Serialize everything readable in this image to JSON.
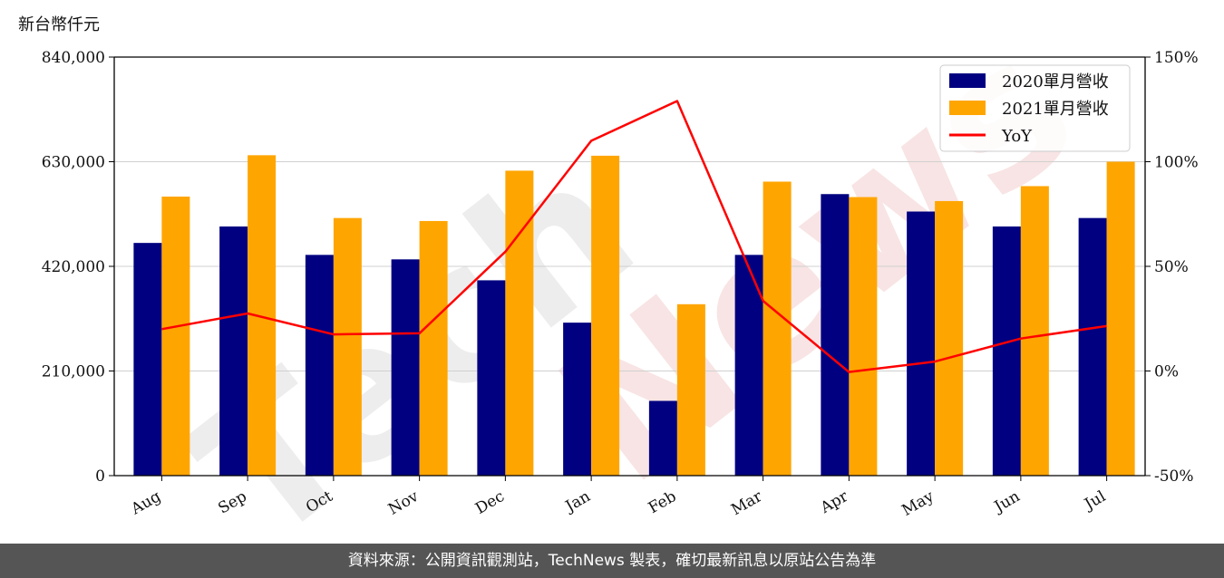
{
  "chart_data": {
    "type": "bar",
    "unit_label": "新台幣仟元",
    "categories": [
      "Aug",
      "Sep",
      "Oct",
      "Nov",
      "Dec",
      "Jan",
      "Feb",
      "Mar",
      "Apr",
      "May",
      "Jun",
      "Jul"
    ],
    "series": [
      {
        "name": "2020單月營收",
        "type": "bar",
        "color": "#000080",
        "values": [
          467000,
          500000,
          443000,
          434000,
          392000,
          307000,
          150000,
          443000,
          565000,
          530000,
          500000,
          517000
        ]
      },
      {
        "name": "2021單月營收",
        "type": "bar",
        "color": "#FFA500",
        "values": [
          560000,
          643000,
          517000,
          511000,
          612000,
          642000,
          344000,
          590000,
          559000,
          551000,
          581000,
          630000
        ]
      },
      {
        "name": "YoY",
        "type": "line",
        "axis": "right",
        "color": "#FF0000",
        "values": [
          20,
          27.5,
          17.5,
          18,
          57,
          110,
          129,
          33.5,
          -0.5,
          4.5,
          15.5,
          21.5
        ]
      }
    ],
    "y_left": {
      "lim": [
        0,
        840000
      ],
      "ticks": [
        "0",
        "210,000",
        "420,000",
        "630,000",
        "840,000"
      ],
      "tick_values": [
        0,
        210000,
        420000,
        630000,
        840000
      ]
    },
    "y_right": {
      "lim": [
        -50,
        150
      ],
      "ticks": [
        "-50%",
        "0%",
        "50%",
        "100%",
        "150%"
      ],
      "tick_values": [
        -50,
        0,
        50,
        100,
        150
      ]
    },
    "grid": "horizontal",
    "legend_position": "top-right"
  },
  "watermark": {
    "text_a": "Tech",
    "text_b": "News"
  },
  "footer": {
    "text": "資料來源：公開資訊觀測站，TechNews 製表，確切最新訊息以原站公告為準",
    "bg_color": "#555555"
  }
}
